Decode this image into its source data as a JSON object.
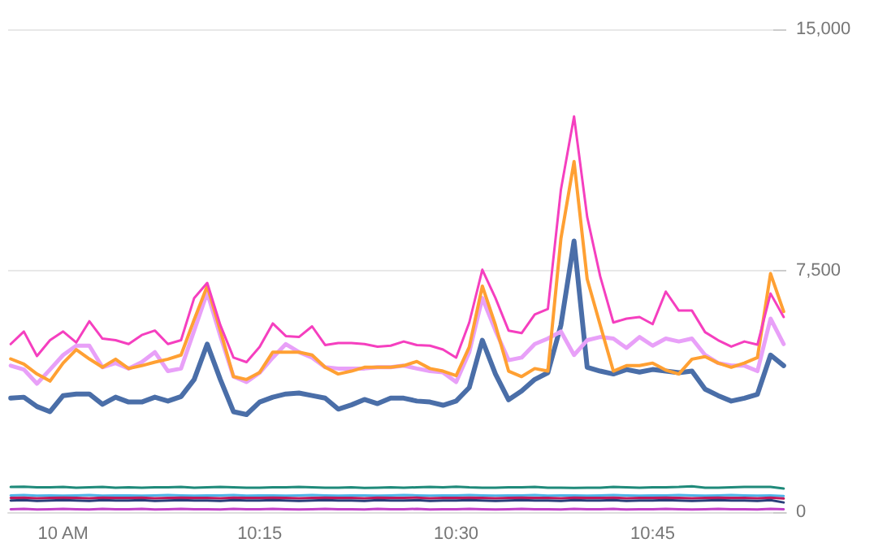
{
  "chart_data": {
    "type": "line",
    "x": [
      9.9333,
      9.95,
      9.9667,
      9.9833,
      10,
      10.0167,
      10.0333,
      10.05,
      10.0667,
      10.0833,
      10.1,
      10.1167,
      10.1333,
      10.15,
      10.1667,
      10.1833,
      10.2,
      10.2167,
      10.2333,
      10.25,
      10.2667,
      10.2833,
      10.3,
      10.3167,
      10.3333,
      10.35,
      10.3667,
      10.3833,
      10.4,
      10.4167,
      10.4333,
      10.45,
      10.4667,
      10.4833,
      10.5,
      10.5167,
      10.5333,
      10.55,
      10.5667,
      10.5833,
      10.6,
      10.6167,
      10.6333,
      10.65,
      10.6667,
      10.6833,
      10.7,
      10.7167,
      10.7333,
      10.75,
      10.7667,
      10.7833,
      10.8,
      10.8167,
      10.8333,
      10.85,
      10.8667,
      10.8833,
      10.9,
      10.9167
    ],
    "xlim": [
      9.93,
      10.92
    ],
    "xticks": [
      {
        "value": 10,
        "label": "10 AM"
      },
      {
        "value": 10.25,
        "label": "10:15"
      },
      {
        "value": 10.5,
        "label": "10:30"
      },
      {
        "value": 10.75,
        "label": "10:45"
      }
    ],
    "ylim": [
      0,
      15000
    ],
    "yticks": [
      0,
      {
        "value": 7500,
        "label": "7,500"
      },
      {
        "value": 15000,
        "label": "15,000"
      }
    ],
    "grid": "y",
    "series": [
      {
        "color": "#1f8a7a",
        "values": [
          780,
          790,
          770,
          770,
          780,
          760,
          770,
          780,
          760,
          770,
          760,
          770,
          770,
          780,
          760,
          770,
          780,
          770,
          760,
          760,
          770,
          770,
          780,
          770,
          760,
          760,
          770,
          750,
          760,
          770,
          760,
          770,
          780,
          770,
          790,
          770,
          760,
          760,
          770,
          770,
          780,
          760,
          760,
          750,
          760,
          760,
          780,
          770,
          760,
          770,
          770,
          780,
          800,
          760,
          760,
          770,
          780,
          780,
          780,
          730
        ]
      },
      {
        "color": "#4fb3e8",
        "values": [
          520,
          530,
          510,
          520,
          510,
          520,
          530,
          510,
          520,
          520,
          510,
          520,
          530,
          520,
          510,
          520,
          520,
          530,
          510,
          520,
          520,
          510,
          520,
          530,
          520,
          510,
          520,
          520,
          510,
          520,
          530,
          520,
          510,
          520,
          520,
          530,
          520,
          510,
          520,
          520,
          530,
          510,
          520,
          520,
          510,
          520,
          530,
          520,
          510,
          520,
          520,
          530,
          520,
          510,
          520,
          530,
          520,
          510,
          520,
          500
        ]
      },
      {
        "color": "#c2185b",
        "values": [
          440,
          450,
          430,
          440,
          450,
          440,
          430,
          450,
          440,
          440,
          450,
          430,
          440,
          450,
          440,
          440,
          430,
          450,
          440,
          440,
          450,
          440,
          430,
          440,
          450,
          440,
          440,
          430,
          450,
          440,
          440,
          450,
          430,
          440,
          440,
          450,
          440,
          430,
          440,
          450,
          440,
          440,
          430,
          450,
          440,
          440,
          450,
          430,
          440,
          440,
          450,
          440,
          430,
          440,
          450,
          440,
          440,
          430,
          450,
          420
        ]
      },
      {
        "color": "#2a3f7a",
        "values": [
          360,
          370,
          350,
          360,
          370,
          360,
          350,
          370,
          360,
          360,
          370,
          350,
          360,
          370,
          360,
          360,
          350,
          370,
          360,
          360,
          370,
          360,
          350,
          360,
          370,
          360,
          360,
          350,
          370,
          360,
          360,
          370,
          350,
          360,
          360,
          370,
          360,
          350,
          360,
          370,
          360,
          360,
          350,
          370,
          360,
          360,
          370,
          350,
          360,
          360,
          370,
          360,
          350,
          360,
          370,
          360,
          360,
          350,
          370,
          300
        ]
      },
      {
        "color": "#c040c8",
        "values": [
          90,
          100,
          80,
          90,
          100,
          90,
          80,
          100,
          90,
          90,
          100,
          80,
          90,
          100,
          90,
          90,
          80,
          100,
          90,
          90,
          100,
          90,
          80,
          90,
          100,
          90,
          90,
          80,
          100,
          90,
          90,
          100,
          80,
          90,
          90,
          100,
          90,
          80,
          90,
          100,
          90,
          90,
          80,
          100,
          90,
          90,
          100,
          80,
          90,
          90,
          100,
          90,
          80,
          90,
          100,
          90,
          90,
          80,
          100,
          90
        ]
      },
      {
        "color": "#4a6ea8",
        "values": [
          3540,
          3570,
          3280,
          3120,
          3620,
          3670,
          3670,
          3350,
          3570,
          3420,
          3420,
          3570,
          3450,
          3590,
          4120,
          5220,
          4120,
          3120,
          3030,
          3420,
          3570,
          3670,
          3700,
          3620,
          3540,
          3200,
          3330,
          3500,
          3370,
          3540,
          3540,
          3450,
          3420,
          3320,
          3450,
          3870,
          5340,
          4290,
          3490,
          3760,
          4120,
          4330,
          5810,
          8420,
          4500,
          4380,
          4290,
          4430,
          4350,
          4430,
          4380,
          4330,
          4380,
          3820,
          3620,
          3450,
          3540,
          3660,
          4880,
          4550
        ]
      },
      {
        "color": "#e8a0f8",
        "values": [
          4550,
          4430,
          3990,
          4430,
          4880,
          5170,
          5170,
          4500,
          4630,
          4460,
          4660,
          4970,
          4380,
          4460,
          5640,
          6820,
          5470,
          4210,
          4040,
          4330,
          4800,
          5220,
          4970,
          4800,
          4500,
          4460,
          4460,
          4460,
          4500,
          4500,
          4550,
          4460,
          4380,
          4340,
          4040,
          4970,
          6650,
          5640,
          4720,
          4800,
          5220,
          5390,
          5610,
          4880,
          5340,
          5440,
          5390,
          5100,
          5440,
          5170,
          5390,
          5300,
          5390,
          4880,
          4630,
          4550,
          4550,
          4380,
          6010,
          5220
        ]
      },
      {
        "color": "#ffa033",
        "values": [
          4760,
          4600,
          4290,
          4070,
          4630,
          5050,
          4760,
          4500,
          4750,
          4460,
          4550,
          4660,
          4750,
          4880,
          5980,
          7020,
          5640,
          4210,
          4120,
          4340,
          4970,
          4970,
          4970,
          4880,
          4500,
          4290,
          4380,
          4500,
          4500,
          4500,
          4550,
          4680,
          4460,
          4380,
          4240,
          5130,
          7020,
          5810,
          4380,
          4210,
          4460,
          4380,
          8500,
          10890,
          7240,
          5810,
          4380,
          4550,
          4550,
          4630,
          4410,
          4290,
          4750,
          4830,
          4630,
          4500,
          4630,
          4800,
          7410,
          6230
        ]
      },
      {
        "color": "#f53fbf",
        "values": [
          5220,
          5610,
          4850,
          5340,
          5610,
          5270,
          5930,
          5390,
          5340,
          5220,
          5500,
          5640,
          5220,
          5340,
          6650,
          7120,
          5810,
          4800,
          4660,
          5130,
          5860,
          5470,
          5440,
          5770,
          5190,
          5250,
          5250,
          5220,
          5140,
          5170,
          5300,
          5190,
          5170,
          5050,
          4800,
          5890,
          7530,
          6650,
          5640,
          5560,
          6140,
          6310,
          10020,
          12290,
          9170,
          7320,
          5890,
          6010,
          6060,
          5840,
          6850,
          6260,
          6260,
          5590,
          5340,
          5140,
          5300,
          5200,
          6790,
          6060
        ]
      }
    ]
  }
}
